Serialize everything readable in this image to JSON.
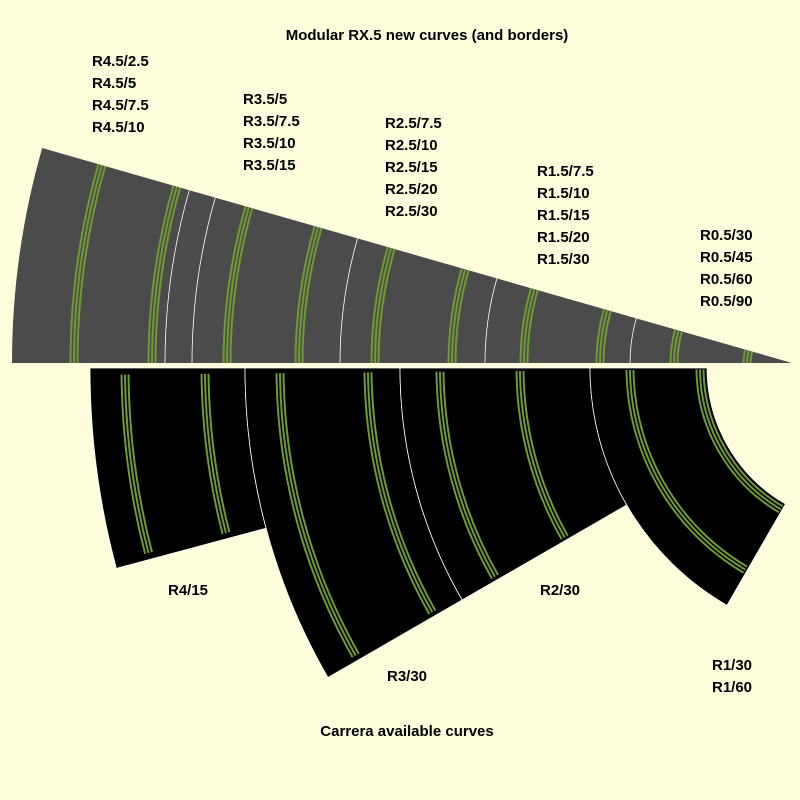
{
  "title": "Modular RX.5 new curves (and borders)",
  "new_curves": [
    {
      "labels": [
        "R4.5/2.5",
        "R4.5/5",
        "R4.5/7.5",
        "R4.5/10"
      ]
    },
    {
      "labels": [
        "R3.5/5",
        "R3.5/7.5",
        "R3.5/10",
        "R3.5/15"
      ]
    },
    {
      "labels": [
        "R2.5/7.5",
        "R2.5/10",
        "R2.5/15",
        "R2.5/20",
        "R2.5/30"
      ]
    },
    {
      "labels": [
        "R1.5/7.5",
        "R1.5/10",
        "R1.5/15",
        "R1.5/20",
        "R1.5/30"
      ]
    },
    {
      "labels": [
        "R0.5/30",
        "R0.5/45",
        "R0.5/60",
        "R0.5/90"
      ]
    }
  ],
  "carrera_curves": [
    {
      "labels": [
        "R4/15"
      ]
    },
    {
      "labels": [
        "R3/30"
      ]
    },
    {
      "labels": [
        "R2/30"
      ]
    },
    {
      "labels": [
        "R1/30",
        "R1/60"
      ]
    }
  ],
  "footer": "Carrera available curves"
}
